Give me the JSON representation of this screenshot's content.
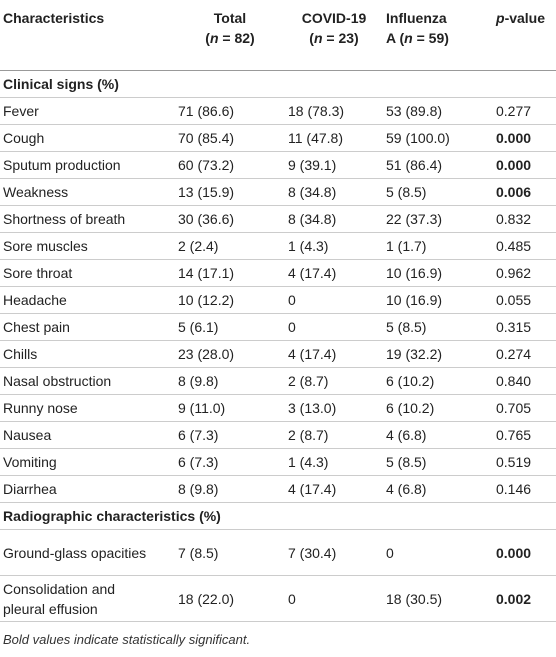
{
  "table": {
    "header": [
      [
        "Characteristics"
      ],
      [
        "Total",
        "(",
        "n",
        " = 82)"
      ],
      [
        "COVID-19",
        "(",
        "n",
        " = 23)"
      ],
      [
        "Influenza",
        "A (",
        "n",
        " = 59)"
      ],
      [
        "p",
        "-value"
      ]
    ],
    "sections": [
      {
        "title": "Clinical signs (%)",
        "rows": [
          {
            "cells": [
              "Fever",
              "71 (86.6)",
              "18 (78.3)",
              "53 (89.8)",
              "0.277"
            ],
            "significant": false
          },
          {
            "cells": [
              "Cough",
              "70 (85.4)",
              "11 (47.8)",
              "59 (100.0)",
              "0.000"
            ],
            "significant": true
          },
          {
            "cells": [
              "Sputum production",
              "60 (73.2)",
              "9 (39.1)",
              "51 (86.4)",
              "0.000"
            ],
            "significant": true
          },
          {
            "cells": [
              "Weakness",
              "13 (15.9)",
              "8 (34.8)",
              "5 (8.5)",
              "0.006"
            ],
            "significant": true
          },
          {
            "cells": [
              "Shortness of breath",
              "30 (36.6)",
              "8 (34.8)",
              "22 (37.3)",
              "0.832"
            ],
            "significant": false
          },
          {
            "cells": [
              "Sore muscles",
              "2 (2.4)",
              "1 (4.3)",
              "1 (1.7)",
              "0.485"
            ],
            "significant": false
          },
          {
            "cells": [
              "Sore throat",
              "14 (17.1)",
              "4 (17.4)",
              "10 (16.9)",
              "0.962"
            ],
            "significant": false
          },
          {
            "cells": [
              "Headache",
              "10 (12.2)",
              "0",
              "10 (16.9)",
              "0.055"
            ],
            "significant": false
          },
          {
            "cells": [
              "Chest pain",
              "5 (6.1)",
              "0",
              "5 (8.5)",
              "0.315"
            ],
            "significant": false
          },
          {
            "cells": [
              "Chills",
              "23 (28.0)",
              "4 (17.4)",
              "19 (32.2)",
              "0.274"
            ],
            "significant": false
          },
          {
            "cells": [
              "Nasal obstruction",
              "8 (9.8)",
              "2 (8.7)",
              "6 (10.2)",
              "0.840"
            ],
            "significant": false
          },
          {
            "cells": [
              "Runny nose",
              "9 (11.0)",
              "3 (13.0)",
              "6 (10.2)",
              "0.705"
            ],
            "significant": false
          },
          {
            "cells": [
              "Nausea",
              "6 (7.3)",
              "2 (8.7)",
              "4 (6.8)",
              "0.765"
            ],
            "significant": false
          },
          {
            "cells": [
              "Vomiting",
              "6 (7.3)",
              "1 (4.3)",
              "5 (8.5)",
              "0.519"
            ],
            "significant": false
          },
          {
            "cells": [
              "Diarrhea",
              "8 (9.8)",
              "4 (17.4)",
              "4 (6.8)",
              "0.146"
            ],
            "significant": false
          }
        ]
      },
      {
        "title": "Radiographic characteristics (%)",
        "rows": [
          {
            "cells": [
              "Ground-glass opacities",
              "7 (8.5)",
              "7 (30.4)",
              "0",
              "0.000"
            ],
            "significant": true
          },
          {
            "cells": [
              "Consolidation and pleural effusion",
              "18 (22.0)",
              "0",
              "18 (30.5)",
              "0.002"
            ],
            "significant": true
          }
        ]
      }
    ],
    "footnote": "Bold values indicate statistically significant."
  }
}
